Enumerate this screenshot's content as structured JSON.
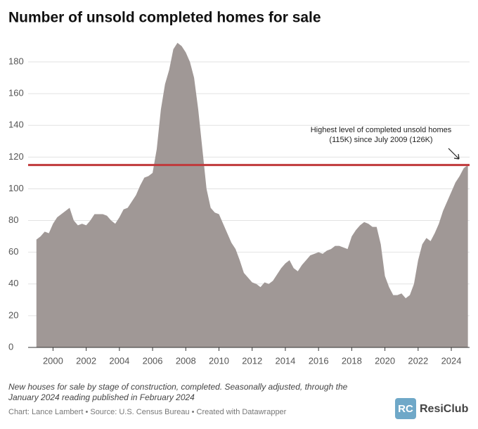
{
  "chart_data": {
    "type": "area",
    "title": "Number of unsold completed homes for sale",
    "annotation": [
      "Highest level of completed unsold homes",
      "(115K) since July 2009 (126K)"
    ],
    "reference_value": 115,
    "reference_color": "#c0393b",
    "color": "#a09896",
    "grid": true,
    "x": [
      1999,
      1999.25,
      1999.5,
      1999.75,
      2000,
      2000.25,
      2000.5,
      2000.75,
      2001,
      2001.25,
      2001.5,
      2001.75,
      2002,
      2002.25,
      2002.5,
      2002.75,
      2003,
      2003.25,
      2003.5,
      2003.75,
      2004,
      2004.25,
      2004.5,
      2004.75,
      2005,
      2005.25,
      2005.5,
      2005.75,
      2006,
      2006.25,
      2006.5,
      2006.75,
      2007,
      2007.25,
      2007.5,
      2007.75,
      2008,
      2008.25,
      2008.5,
      2008.75,
      2009,
      2009.25,
      2009.5,
      2009.75,
      2010,
      2010.25,
      2010.5,
      2010.75,
      2011,
      2011.25,
      2011.5,
      2011.75,
      2012,
      2012.25,
      2012.5,
      2012.75,
      2013,
      2013.25,
      2013.5,
      2013.75,
      2014,
      2014.25,
      2014.5,
      2014.75,
      2015,
      2015.25,
      2015.5,
      2015.75,
      2016,
      2016.25,
      2016.5,
      2016.75,
      2017,
      2017.25,
      2017.5,
      2017.75,
      2018,
      2018.25,
      2018.5,
      2018.75,
      2019,
      2019.25,
      2019.5,
      2019.75,
      2020,
      2020.25,
      2020.5,
      2020.75,
      2021,
      2021.25,
      2021.5,
      2021.75,
      2022,
      2022.25,
      2022.5,
      2022.75,
      2023,
      2023.25,
      2023.5,
      2023.75,
      2024,
      2024.25,
      2024.5,
      2024.75,
      2025
    ],
    "values": [
      68,
      70,
      73,
      72,
      78,
      82,
      84,
      86,
      88,
      80,
      77,
      78,
      77,
      80,
      84,
      84,
      84,
      83,
      80,
      78,
      82,
      87,
      88,
      92,
      96,
      102,
      107,
      108,
      110,
      125,
      150,
      166,
      175,
      188,
      192,
      190,
      186,
      180,
      170,
      150,
      125,
      100,
      88,
      85,
      84,
      78,
      72,
      66,
      62,
      55,
      47,
      44,
      41,
      40,
      38,
      41,
      40,
      42,
      46,
      50,
      53,
      55,
      50,
      48,
      52,
      55,
      58,
      59,
      60,
      59,
      61,
      62,
      64,
      64,
      63,
      62,
      70,
      74,
      77,
      79,
      78,
      76,
      76,
      65,
      45,
      38,
      33,
      33,
      34,
      31,
      33,
      40,
      55,
      65,
      69,
      67,
      72,
      78,
      86,
      92,
      98,
      104,
      108,
      113,
      115
    ],
    "xlim": [
      1998.5,
      2025.1
    ],
    "xticks": [
      2000,
      2002,
      2004,
      2006,
      2008,
      2010,
      2012,
      2014,
      2016,
      2018,
      2020,
      2022,
      2024
    ],
    "ylim": [
      0,
      180
    ],
    "yticks": [
      0,
      20,
      40,
      60,
      80,
      100,
      120,
      140,
      160,
      180
    ],
    "notes": [
      "New houses for sale by stage of construction, completed. Seasonally adjusted, through the",
      "January 2024 reading published in February 2024"
    ],
    "source": "Chart: Lance Lambert • Source: U.S. Census Bureau • Created with Datawrapper",
    "brand": "ResiClub"
  }
}
